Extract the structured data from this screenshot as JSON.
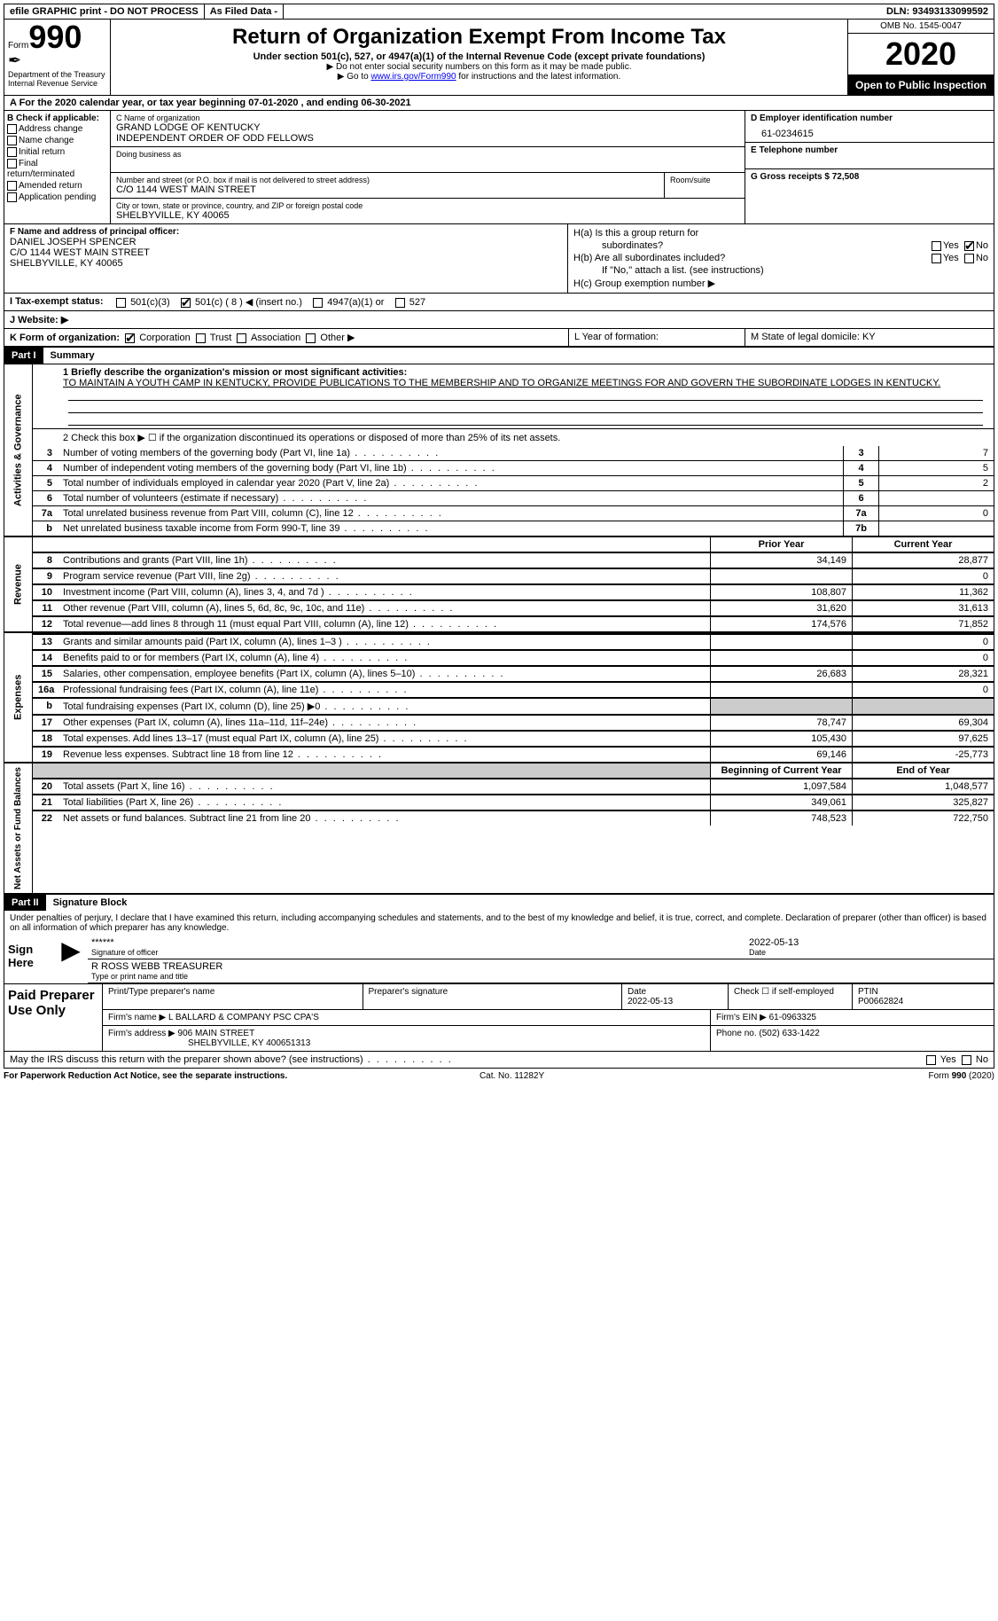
{
  "top": {
    "efile": "efile GRAPHIC print - DO NOT PROCESS",
    "asfiled": "As Filed Data -",
    "dln": "DLN: 93493133099592"
  },
  "header": {
    "form_prefix": "Form",
    "form_number": "990",
    "dept": "Department of the Treasury",
    "irs": "Internal Revenue Service",
    "title": "Return of Organization Exempt From Income Tax",
    "sub1": "Under section 501(c), 527, or 4947(a)(1) of the Internal Revenue Code (except private foundations)",
    "sub2": "▶ Do not enter social security numbers on this form as it may be made public.",
    "sub3_prefix": "▶ Go to ",
    "sub3_link": "www.irs.gov/Form990",
    "sub3_suffix": " for instructions and the latest information.",
    "omb": "OMB No. 1545-0047",
    "year": "2020",
    "open": "Open to Public Inspection"
  },
  "row_a": "A   For the 2020 calendar year, or tax year beginning 07-01-2020   , and ending 06-30-2021",
  "col_b": {
    "label": "B Check if applicable:",
    "items": [
      "Address change",
      "Name change",
      "Initial return",
      "Final return/terminated",
      "Amended return",
      "Application pending"
    ]
  },
  "col_c": {
    "name_lbl": "C Name of organization",
    "name1": "GRAND LODGE OF KENTUCKY",
    "name2": "INDEPENDENT ORDER OF ODD FELLOWS",
    "dba_lbl": "Doing business as",
    "addr_lbl": "Number and street (or P.O. box if mail is not delivered to street address)",
    "addr": "C/O 1144 WEST MAIN STREET",
    "room_lbl": "Room/suite",
    "city_lbl": "City or town, state or province, country, and ZIP or foreign postal code",
    "city": "SHELBYVILLE, KY  40065"
  },
  "col_d": {
    "ein_lbl": "D Employer identification number",
    "ein": "61-0234615",
    "tel_lbl": "E Telephone number",
    "gross_lbl": "G Gross receipts $ 72,508"
  },
  "col_f": {
    "lbl": "F  Name and address of principal officer:",
    "l1": "DANIEL JOSEPH SPENCER",
    "l2": "C/O 1144 WEST MAIN STREET",
    "l3": "SHELBYVILLE, KY  40065"
  },
  "col_h": {
    "ha": "H(a)  Is this a group return for",
    "ha2": "subordinates?",
    "hb": "H(b)  Are all subordinates included?",
    "hb2": "If \"No,\" attach a list. (see instructions)",
    "hc": "H(c)  Group exemption number ▶",
    "yes": "Yes",
    "no": "No"
  },
  "row_i": {
    "lbl": "I   Tax-exempt status:",
    "o1": "501(c)(3)",
    "o2": "501(c) ( 8 ) ◀ (insert no.)",
    "o3": "4947(a)(1) or",
    "o4": "527"
  },
  "row_j": "J   Website: ▶",
  "row_k": {
    "k": "K Form of organization:",
    "corp": "Corporation",
    "trust": "Trust",
    "assoc": "Association",
    "other": "Other ▶",
    "l": "L Year of formation:",
    "m": "M State of legal domicile: KY"
  },
  "part1": {
    "hdr": "Part I",
    "title": "Summary",
    "line1_lbl": "1 Briefly describe the organization's mission or most significant activities:",
    "line1_text": "TO MAINTAIN A YOUTH CAMP IN KENTUCKY, PROVIDE PUBLICATIONS TO THE MEMBERSHIP AND TO ORGANIZE MEETINGS FOR AND GOVERN THE SUBORDINATE LODGES IN KENTUCKY.",
    "line2": "2   Check this box ▶ ☐ if the organization discontinued its operations or disposed of more than 25% of its net assets.",
    "lines_num": [
      {
        "n": "3",
        "d": "Number of voting members of the governing body (Part VI, line 1a)",
        "box": "3",
        "v": "7"
      },
      {
        "n": "4",
        "d": "Number of independent voting members of the governing body (Part VI, line 1b)",
        "box": "4",
        "v": "5"
      },
      {
        "n": "5",
        "d": "Total number of individuals employed in calendar year 2020 (Part V, line 2a)",
        "box": "5",
        "v": "2"
      },
      {
        "n": "6",
        "d": "Total number of volunteers (estimate if necessary)",
        "box": "6",
        "v": ""
      },
      {
        "n": "7a",
        "d": "Total unrelated business revenue from Part VIII, column (C), line 12",
        "box": "7a",
        "v": "0"
      },
      {
        "n": "b",
        "d": "Net unrelated business taxable income from Form 990-T, line 39",
        "box": "7b",
        "v": ""
      }
    ],
    "vtab1": "Activities & Governance",
    "prior": "Prior Year",
    "current": "Current Year",
    "revenue": [
      {
        "n": "8",
        "d": "Contributions and grants (Part VIII, line 1h)",
        "p": "34,149",
        "c": "28,877"
      },
      {
        "n": "9",
        "d": "Program service revenue (Part VIII, line 2g)",
        "p": "",
        "c": "0"
      },
      {
        "n": "10",
        "d": "Investment income (Part VIII, column (A), lines 3, 4, and 7d )",
        "p": "108,807",
        "c": "11,362"
      },
      {
        "n": "11",
        "d": "Other revenue (Part VIII, column (A), lines 5, 6d, 8c, 9c, 10c, and 11e)",
        "p": "31,620",
        "c": "31,613"
      },
      {
        "n": "12",
        "d": "Total revenue—add lines 8 through 11 (must equal Part VIII, column (A), line 12)",
        "p": "174,576",
        "c": "71,852"
      }
    ],
    "vtab2": "Revenue",
    "expenses": [
      {
        "n": "13",
        "d": "Grants and similar amounts paid (Part IX, column (A), lines 1–3 )",
        "p": "",
        "c": "0"
      },
      {
        "n": "14",
        "d": "Benefits paid to or for members (Part IX, column (A), line 4)",
        "p": "",
        "c": "0"
      },
      {
        "n": "15",
        "d": "Salaries, other compensation, employee benefits (Part IX, column (A), lines 5–10)",
        "p": "26,683",
        "c": "28,321"
      },
      {
        "n": "16a",
        "d": "Professional fundraising fees (Part IX, column (A), line 11e)",
        "p": "",
        "c": "0"
      },
      {
        "n": "b",
        "d": "Total fundraising expenses (Part IX, column (D), line 25) ▶0",
        "p": "grey",
        "c": "grey"
      },
      {
        "n": "17",
        "d": "Other expenses (Part IX, column (A), lines 11a–11d, 11f–24e)",
        "p": "78,747",
        "c": "69,304"
      },
      {
        "n": "18",
        "d": "Total expenses. Add lines 13–17 (must equal Part IX, column (A), line 25)",
        "p": "105,430",
        "c": "97,625"
      },
      {
        "n": "19",
        "d": "Revenue less expenses. Subtract line 18 from line 12",
        "p": "69,146",
        "c": "-25,773"
      }
    ],
    "vtab3": "Expenses",
    "begin": "Beginning of Current Year",
    "end": "End of Year",
    "netassets": [
      {
        "n": "20",
        "d": "Total assets (Part X, line 16)",
        "p": "1,097,584",
        "c": "1,048,577"
      },
      {
        "n": "21",
        "d": "Total liabilities (Part X, line 26)",
        "p": "349,061",
        "c": "325,827"
      },
      {
        "n": "22",
        "d": "Net assets or fund balances. Subtract line 21 from line 20",
        "p": "748,523",
        "c": "722,750"
      }
    ],
    "vtab4": "Net Assets or Fund Balances"
  },
  "part2": {
    "hdr": "Part II",
    "title": "Signature Block",
    "decl": "Under penalties of perjury, I declare that I have examined this return, including accompanying schedules and statements, and to the best of my knowledge and belief, it is true, correct, and complete. Declaration of preparer (other than officer) is based on all information of which preparer has any knowledge.",
    "sign_here": "Sign Here",
    "stars": "******",
    "sig_officer": "Signature of officer",
    "date1": "2022-05-13",
    "date_lbl": "Date",
    "name_title": "R ROSS WEBB TREASURER",
    "name_title_lbl": "Type or print name and title",
    "paid": "Paid Preparer Use Only",
    "pr_name_lbl": "Print/Type preparer's name",
    "pr_sig_lbl": "Preparer's signature",
    "pr_date_lbl": "Date",
    "pr_date": "2022-05-13",
    "pr_check": "Check ☐ if self-employed",
    "ptin_lbl": "PTIN",
    "ptin": "P00662824",
    "firm_name_lbl": "Firm's name    ▶",
    "firm_name": "L BALLARD & COMPANY PSC CPA'S",
    "firm_ein_lbl": "Firm's EIN ▶",
    "firm_ein": "61-0963325",
    "firm_addr_lbl": "Firm's address ▶",
    "firm_addr1": "906 MAIN STREET",
    "firm_addr2": "SHELBYVILLE, KY  400651313",
    "phone_lbl": "Phone no.",
    "phone": "(502) 633-1422",
    "discuss": "May the IRS discuss this return with the preparer shown above? (see instructions)",
    "paperwork": "For Paperwork Reduction Act Notice, see the separate instructions.",
    "cat": "Cat. No. 11282Y",
    "form_bottom": "Form 990 (2020)"
  }
}
